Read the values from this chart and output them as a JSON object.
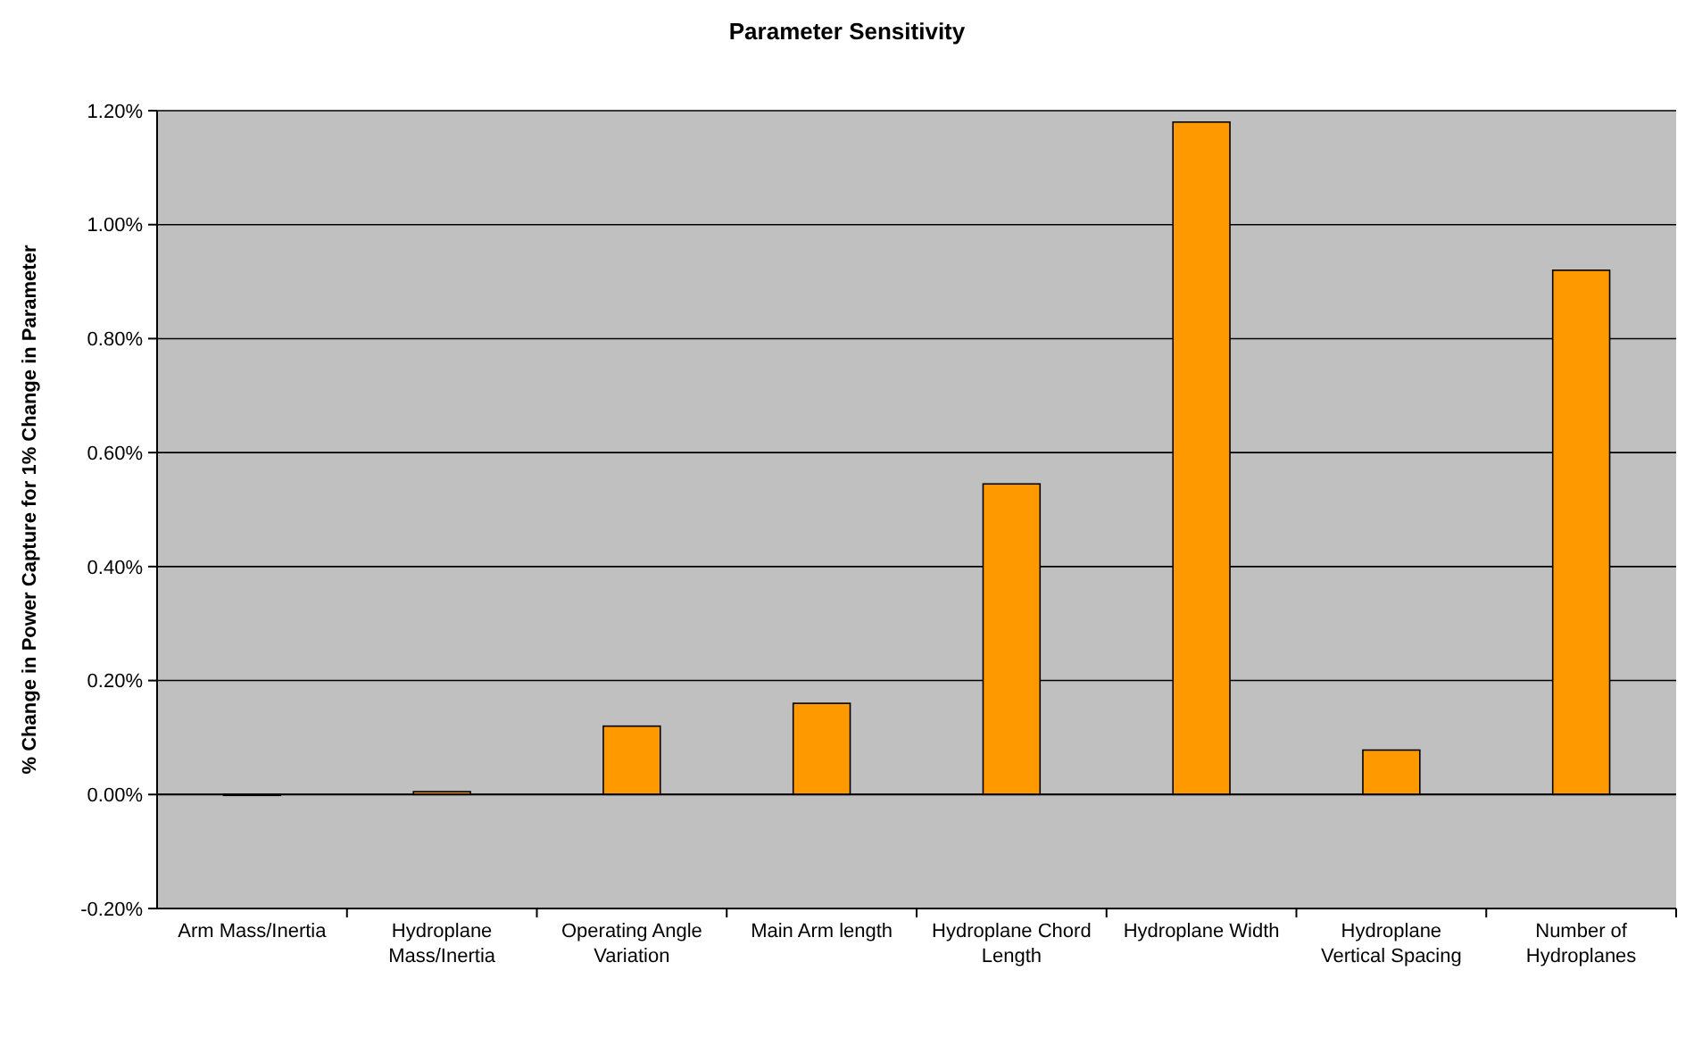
{
  "chart_data": {
    "type": "bar",
    "title": "Parameter Sensitivity",
    "ylabel": "% Change in Power Capture for 1% Change in Parameter",
    "categories": [
      "Arm Mass/Inertia",
      "Hydroplane Mass/Inertia",
      "Operating Angle Variation",
      "Main Arm length",
      "Hydroplane Chord Length",
      "Hydroplane Width",
      "Hydroplane Vertical Spacing",
      "Number of Hydroplanes"
    ],
    "values": [
      0,
      0.005,
      0.12,
      0.16,
      0.545,
      1.18,
      0.078,
      0.92
    ],
    "color": "#ff9900",
    "ylim": [
      -0.2,
      1.2
    ],
    "yticks": [
      {
        "value": -0.2,
        "label": "-0.20%"
      },
      {
        "value": 0,
        "label": "0.00%"
      },
      {
        "value": 0.2,
        "label": "0.20%"
      },
      {
        "value": 0.4,
        "label": "0.40%"
      },
      {
        "value": 0.6,
        "label": "0.60%"
      },
      {
        "value": 0.8,
        "label": "0.80%"
      },
      {
        "value": 1,
        "label": "1.00%"
      },
      {
        "value": 1.2,
        "label": "1.20%"
      }
    ],
    "grid": "y"
  }
}
